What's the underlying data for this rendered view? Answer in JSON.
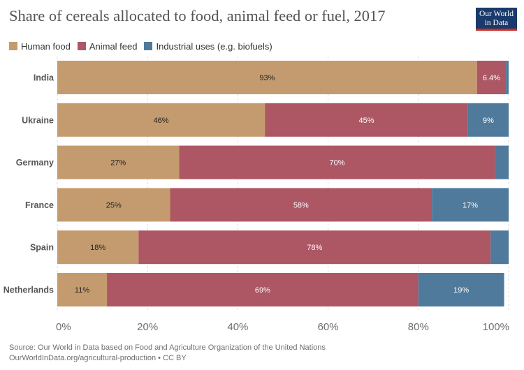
{
  "header": {
    "title": "Share of cereals allocated to food, animal feed or fuel, 2017",
    "logo_line1": "Our World",
    "logo_line2": "in Data"
  },
  "footer": {
    "source": "Source: Our World in Data based on Food and Agriculture Organization of the United Nations",
    "url_license": "OurWorldInData.org/agricultural-production • CC BY"
  },
  "colors": {
    "Human food": "#c49b6e",
    "Animal feed": "#ad5664",
    "Industrial uses (e.g. biofuels)": "#4f7a9c",
    "axis_text": "#6e6e6e",
    "grid": "#dddddd"
  },
  "chart_data": {
    "type": "bar",
    "orientation": "horizontal",
    "stacked": true,
    "categories": [
      "India",
      "Ukraine",
      "Germany",
      "France",
      "Spain",
      "Netherlands"
    ],
    "series": [
      {
        "name": "Human food",
        "values": [
          93,
          46,
          27,
          25,
          18,
          11
        ],
        "labels": [
          "93%",
          "46%",
          "27%",
          "25%",
          "18%",
          "11%"
        ]
      },
      {
        "name": "Animal feed",
        "values": [
          6.4,
          45,
          70,
          58,
          78,
          69
        ],
        "labels": [
          "6.4%",
          "45%",
          "70%",
          "58%",
          "78%",
          "69%"
        ]
      },
      {
        "name": "Industrial uses (e.g. biofuels)",
        "values": [
          0.6,
          9,
          3,
          17,
          4,
          19
        ],
        "labels": [
          "",
          "9%",
          "",
          "17%",
          "",
          "19%"
        ]
      }
    ],
    "xlim": [
      0,
      100
    ],
    "xticks": [
      "0%",
      "20%",
      "40%",
      "60%",
      "80%",
      "100%"
    ],
    "grid": true,
    "legend_position": "top-left"
  }
}
